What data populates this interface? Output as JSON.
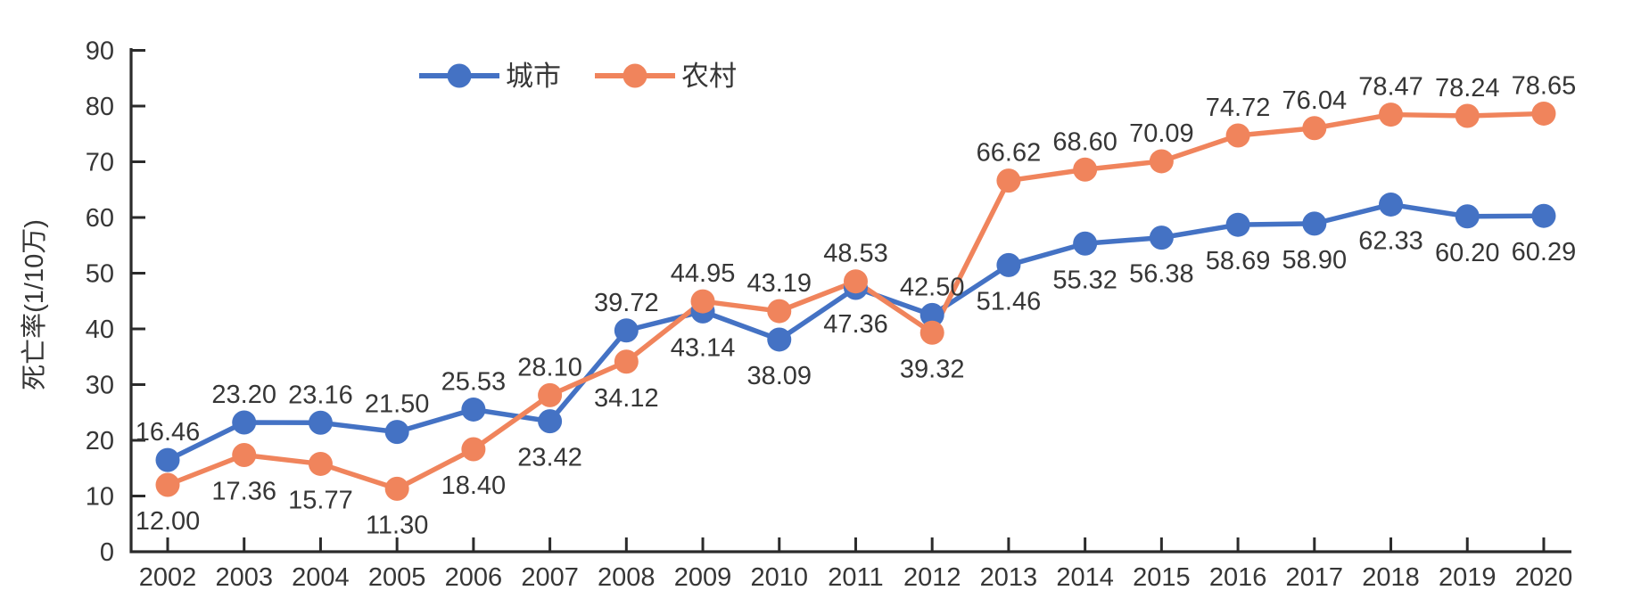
{
  "chart_data": {
    "type": "line",
    "title": "",
    "xlabel": "",
    "ylabel": "死亡率(1/10万)",
    "ylim": [
      0,
      90
    ],
    "ytick_step": 10,
    "grid": false,
    "legend_position": "top-center",
    "marker": "circle",
    "axis_color": "#2b2b2b",
    "text_color": "#363636",
    "categories": [
      "2002",
      "2003",
      "2004",
      "2005",
      "2006",
      "2007",
      "2008",
      "2009",
      "2010",
      "2011",
      "2012",
      "2013",
      "2014",
      "2015",
      "2016",
      "2017",
      "2018",
      "2019",
      "2020"
    ],
    "series": [
      {
        "id": "city",
        "name": "城市",
        "color": "#4472c4",
        "values": [
          16.46,
          23.2,
          23.16,
          21.5,
          25.53,
          23.42,
          39.72,
          43.14,
          38.09,
          47.36,
          42.5,
          51.46,
          55.32,
          56.38,
          58.69,
          58.9,
          62.33,
          60.2,
          60.29
        ],
        "labels": [
          "16.46",
          "23.20",
          "23.16",
          "21.50",
          "25.53",
          "23.42",
          "39.72",
          "43.14",
          "38.09",
          "47.36",
          "42.50",
          "51.46",
          "55.32",
          "56.38",
          "58.69",
          "58.90",
          "62.33",
          "60.20",
          "60.29"
        ]
      },
      {
        "id": "rural",
        "name": "农村",
        "color": "#f0845c",
        "values": [
          12.0,
          17.36,
          15.77,
          11.3,
          18.4,
          28.1,
          34.12,
          44.95,
          43.19,
          48.53,
          39.32,
          66.62,
          68.6,
          70.09,
          74.72,
          76.04,
          78.47,
          78.24,
          78.65
        ],
        "labels": [
          "12.00",
          "17.36",
          "15.77",
          "11.30",
          "18.40",
          "28.10",
          "34.12",
          "44.95",
          "43.19",
          "48.53",
          "39.32",
          "66.62",
          "68.60",
          "70.09",
          "74.72",
          "76.04",
          "78.47",
          "78.24",
          "78.65"
        ]
      }
    ]
  }
}
